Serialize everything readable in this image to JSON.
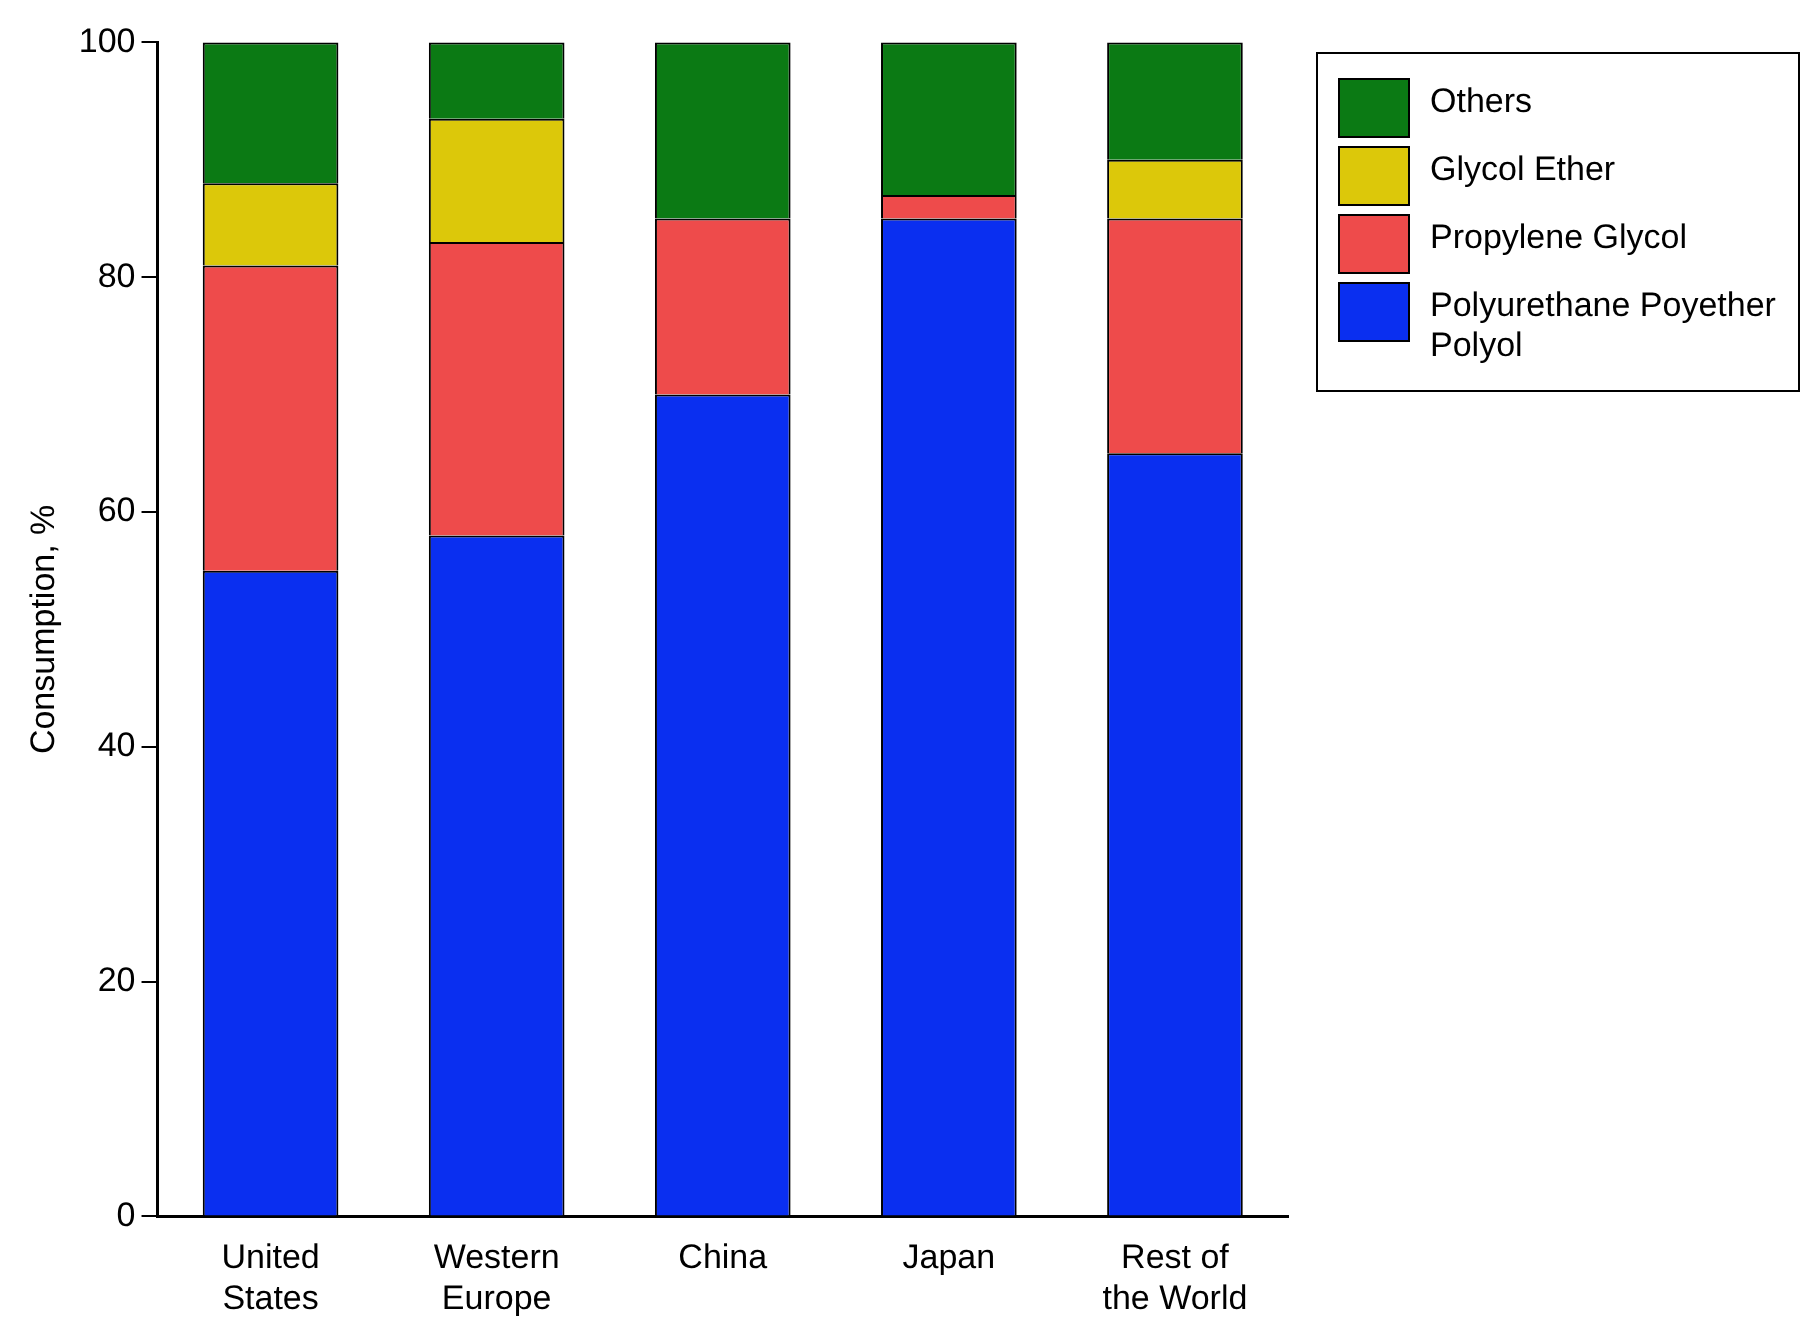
{
  "chart_data": {
    "type": "bar",
    "stacked": true,
    "ylabel": "Consumption, %",
    "categories": [
      "United States",
      "Western Europe",
      "China",
      "Japan",
      "Rest of the World"
    ],
    "series": [
      {
        "name": "Polyurethane Poyether Polyol",
        "color": "#0a2ff0",
        "values": [
          55,
          58,
          70,
          85,
          65
        ]
      },
      {
        "name": "Propylene Glycol",
        "color": "#ee4b4b",
        "values": [
          26,
          25,
          15,
          2,
          20
        ]
      },
      {
        "name": "Glycol Ether",
        "color": "#dcc80a",
        "values": [
          7,
          10.5,
          null,
          null,
          5
        ]
      },
      {
        "name": "Others",
        "color": "#0b7a14",
        "values": [
          12,
          6.5,
          15,
          13,
          10
        ]
      }
    ],
    "ylim": [
      0,
      100
    ],
    "yticks": [
      0,
      20,
      40,
      60,
      80,
      100
    ],
    "grid": false,
    "legend": "top right"
  }
}
